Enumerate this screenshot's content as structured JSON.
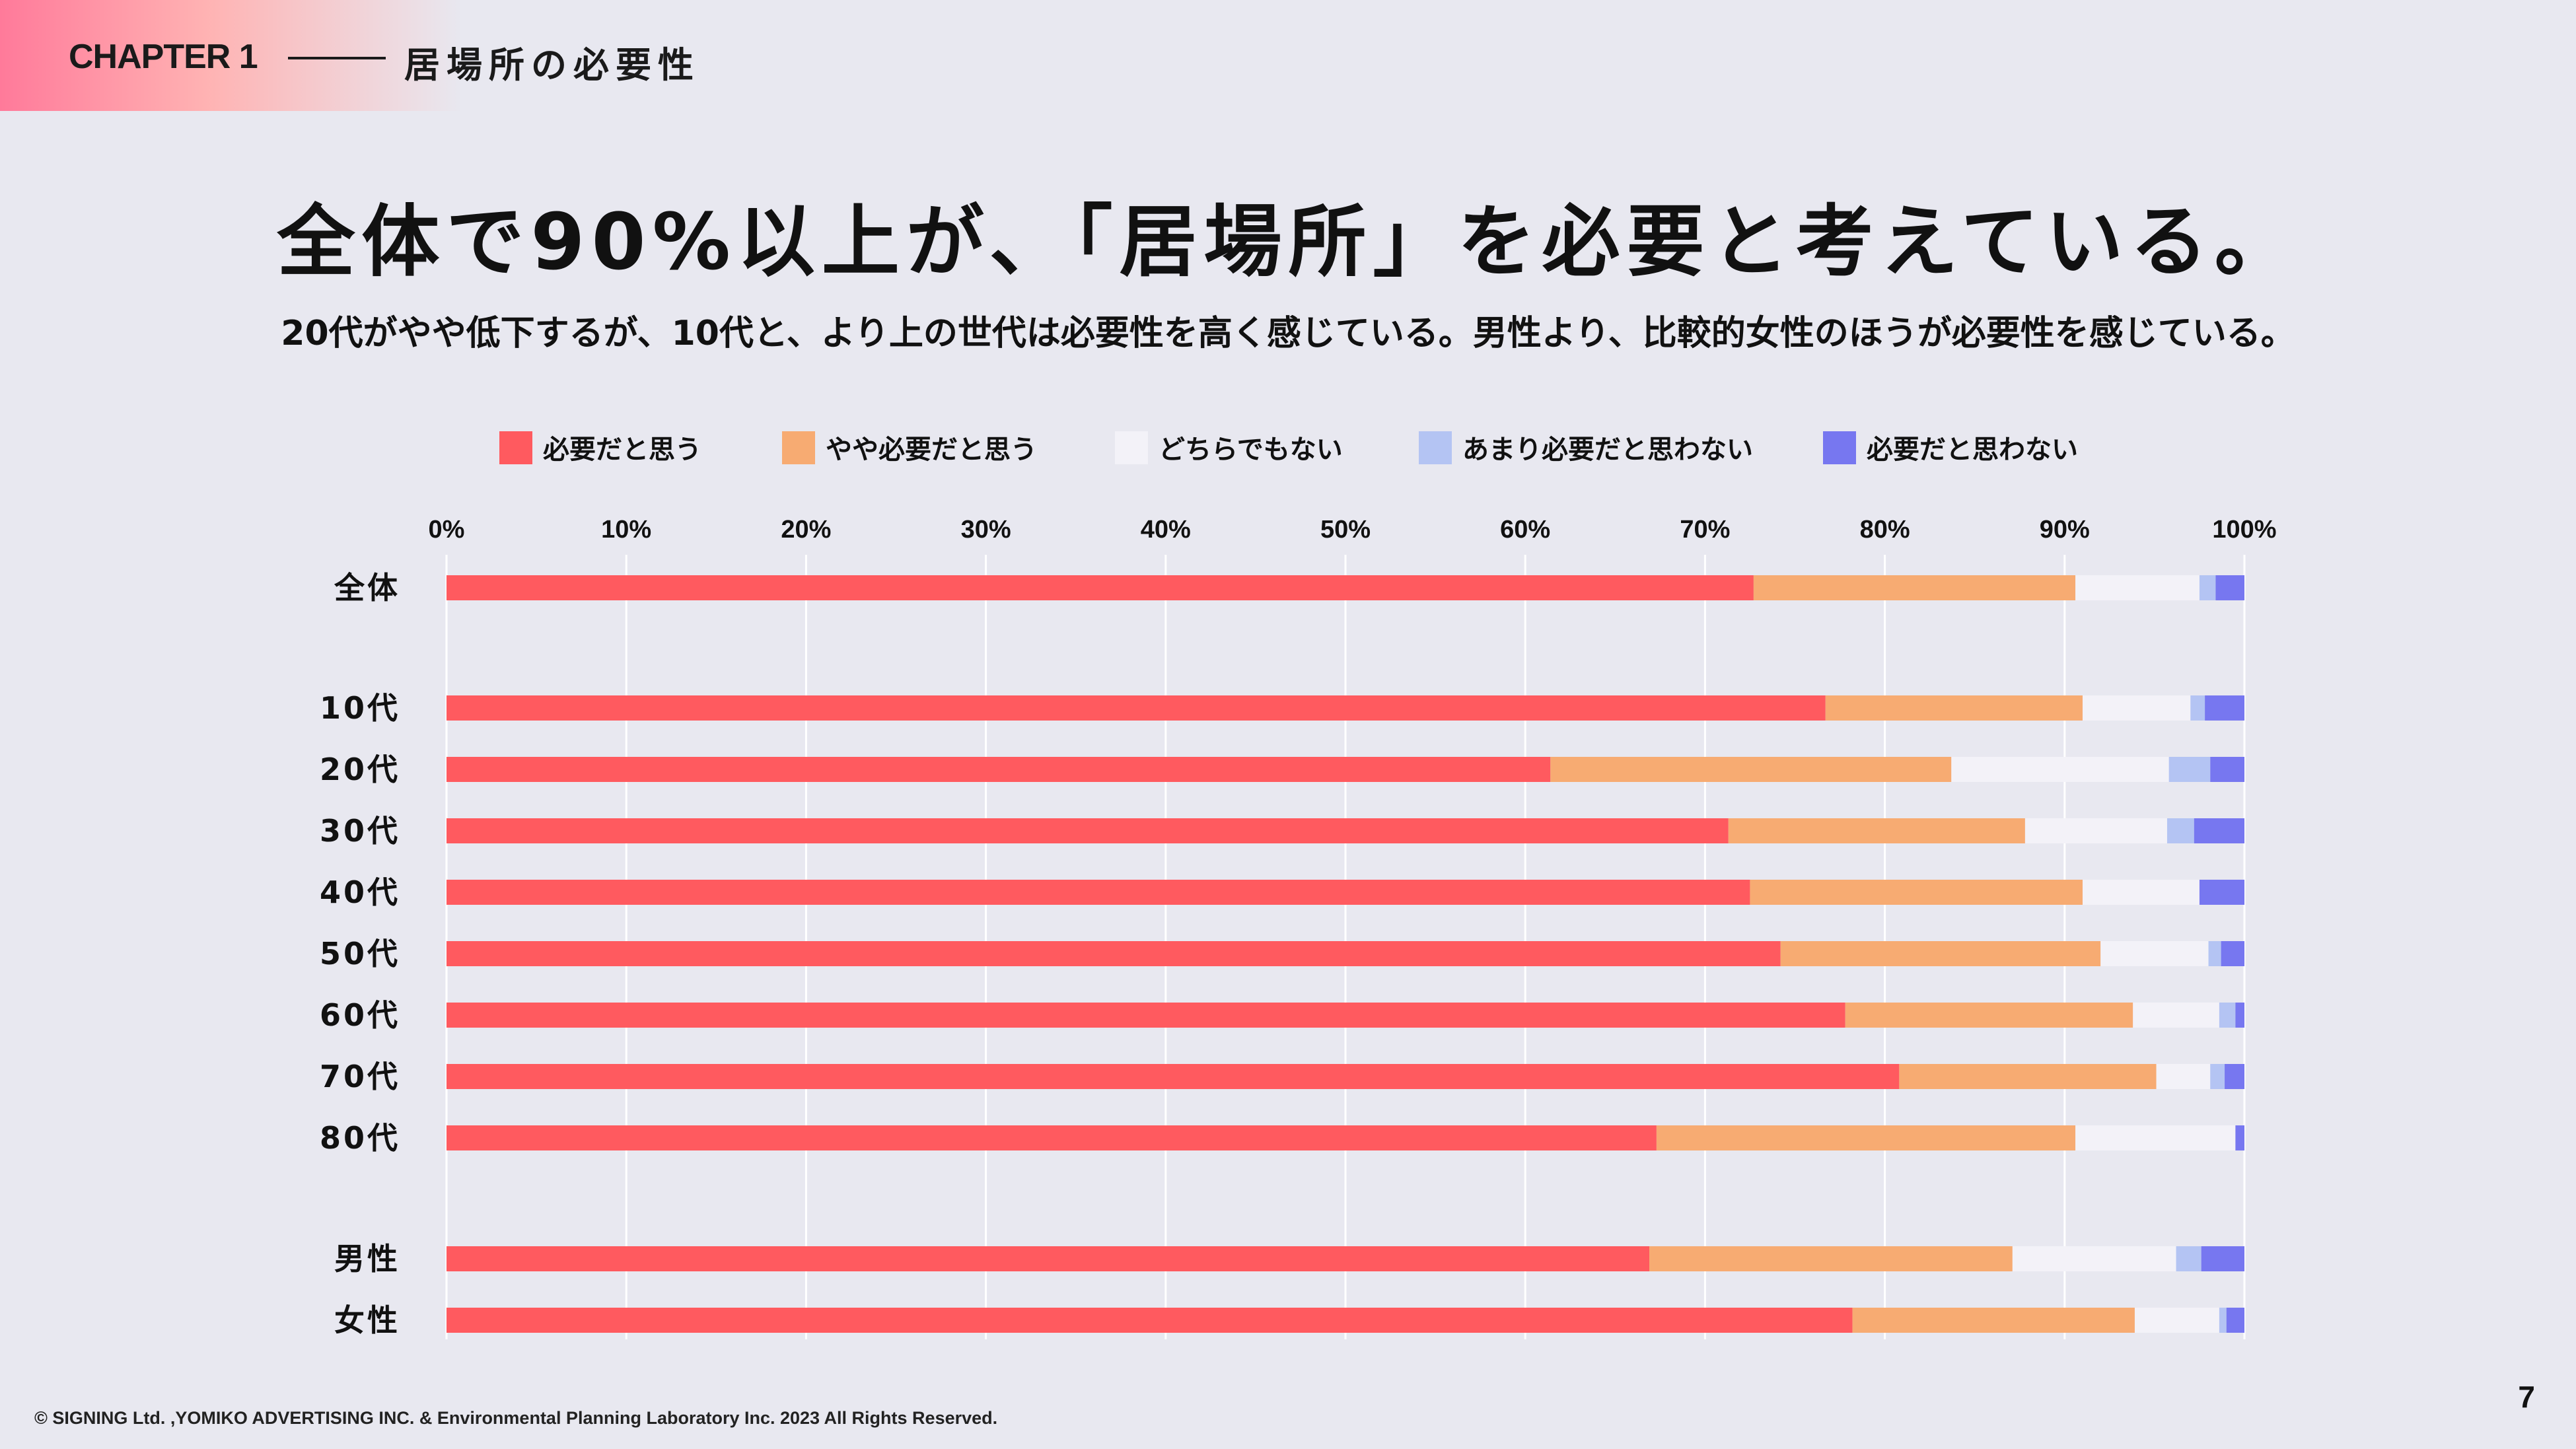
{
  "header": {
    "chapter": "CHAPTER 1",
    "chapter_title": "居場所の必要性"
  },
  "headline": "全体で90%以上が、「居場所」を必要と考えている。",
  "subline": "20代がやや低下するが、10代と、より上の世代は必要性を高く感じている。男性より、比較的女性のほうが必要性を感じている。",
  "footer": {
    "copyright": "© SIGNING Ltd. ,YOMIKO ADVERTISING INC. & Environmental Planning Laboratory Inc. 2023 All Rights Reserved.",
    "page_number": "7"
  },
  "chart_data": {
    "type": "bar",
    "orientation": "horizontal",
    "stacked": true,
    "categories": [
      "全体",
      "10代",
      "20代",
      "30代",
      "40代",
      "50代",
      "60代",
      "70代",
      "80代",
      "男性",
      "女性"
    ],
    "x_ticks": [
      "0%",
      "10%",
      "20%",
      "30%",
      "40%",
      "50%",
      "60%",
      "70%",
      "80%",
      "90%",
      "100%"
    ],
    "xlim": [
      0,
      100
    ],
    "grid": true,
    "legend_position": "top",
    "series": [
      {
        "name": "必要だと思う",
        "color": "#ff5a5f",
        "values": [
          72.7,
          76.7,
          61.4,
          71.3,
          72.5,
          74.2,
          77.8,
          80.8,
          67.3,
          66.9,
          78.2
        ]
      },
      {
        "name": "やや必要だと思う",
        "color": "#f7ab72",
        "values": [
          17.9,
          14.3,
          22.3,
          16.5,
          18.5,
          17.8,
          16.0,
          14.3,
          23.3,
          20.2,
          15.7
        ]
      },
      {
        "name": "どちらでもない",
        "color": "#f3f2f8",
        "values": [
          6.9,
          6.0,
          12.1,
          7.9,
          6.5,
          6.0,
          4.8,
          3.0,
          8.9,
          9.1,
          4.7
        ]
      },
      {
        "name": "あまり必要だと思わない",
        "color": "#b4c4f3",
        "values": [
          0.9,
          0.8,
          2.3,
          1.5,
          0.0,
          0.7,
          0.9,
          0.8,
          0.0,
          1.4,
          0.4
        ]
      },
      {
        "name": "必要だと思わない",
        "color": "#7777f0",
        "values": [
          1.6,
          2.2,
          1.9,
          2.8,
          2.5,
          1.3,
          0.5,
          1.1,
          0.5,
          2.4,
          1.0
        ]
      }
    ]
  }
}
